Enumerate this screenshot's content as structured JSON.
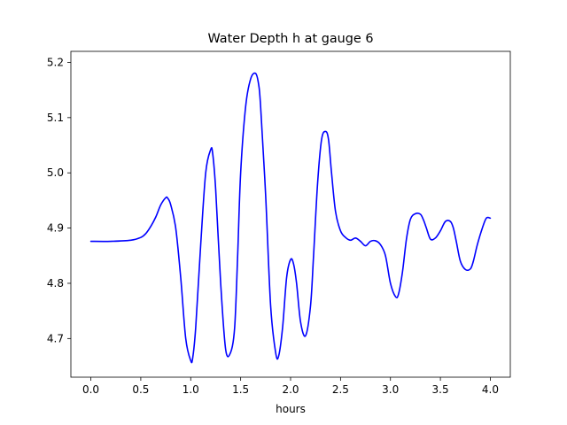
{
  "chart_data": {
    "type": "line",
    "title": "Water Depth h at gauge 6",
    "xlabel": "hours",
    "ylabel": "",
    "xlim": [
      -0.2,
      4.2
    ],
    "ylim": [
      4.63,
      5.22
    ],
    "xticks": [
      0.0,
      0.5,
      1.0,
      1.5,
      2.0,
      2.5,
      3.0,
      3.5,
      4.0
    ],
    "xtick_labels": [
      "0.0",
      "0.5",
      "1.0",
      "1.5",
      "2.0",
      "2.5",
      "3.0",
      "3.5",
      "4.0"
    ],
    "yticks": [
      4.7,
      4.8,
      4.9,
      5.0,
      5.1,
      5.2
    ],
    "ytick_labels": [
      "4.7",
      "4.8",
      "4.9",
      "5.0",
      "5.1",
      "5.2"
    ],
    "grid": false,
    "color": "#0000ff",
    "series": [
      {
        "x": [
          0.0,
          0.2,
          0.4,
          0.5,
          0.55,
          0.6,
          0.65,
          0.7,
          0.75,
          0.77,
          0.8,
          0.85,
          0.9,
          0.95,
          1.0,
          1.02,
          1.05,
          1.1,
          1.15,
          1.2,
          1.22,
          1.25,
          1.3,
          1.35,
          1.4,
          1.44,
          1.47,
          1.5,
          1.55,
          1.6,
          1.65,
          1.68,
          1.7,
          1.75,
          1.8,
          1.85,
          1.88,
          1.92,
          1.96,
          2.0,
          2.03,
          2.06,
          2.1,
          2.15,
          2.2,
          2.23,
          2.27,
          2.31,
          2.35,
          2.38,
          2.41,
          2.45,
          2.5,
          2.55,
          2.6,
          2.65,
          2.7,
          2.75,
          2.8,
          2.85,
          2.9,
          2.95,
          3.0,
          3.05,
          3.08,
          3.12,
          3.16,
          3.2,
          3.25,
          3.3,
          3.33,
          3.36,
          3.4,
          3.45,
          3.5,
          3.55,
          3.6,
          3.63,
          3.66,
          3.7,
          3.75,
          3.8,
          3.83,
          3.87,
          3.92,
          3.96,
          4.0
        ],
        "y": [
          4.876,
          4.876,
          4.878,
          4.883,
          4.89,
          4.903,
          4.92,
          4.942,
          4.955,
          4.954,
          4.942,
          4.9,
          4.81,
          4.7,
          4.66,
          4.665,
          4.72,
          4.87,
          5.0,
          5.042,
          5.035,
          4.97,
          4.8,
          4.68,
          4.675,
          4.72,
          4.85,
          5.0,
          5.12,
          5.17,
          5.18,
          5.16,
          5.12,
          4.96,
          4.76,
          4.675,
          4.668,
          4.72,
          4.81,
          4.843,
          4.835,
          4.8,
          4.73,
          4.705,
          4.76,
          4.85,
          4.98,
          5.06,
          5.075,
          5.06,
          5.0,
          4.93,
          4.895,
          4.883,
          4.878,
          4.882,
          4.876,
          4.868,
          4.876,
          4.877,
          4.87,
          4.85,
          4.8,
          4.776,
          4.78,
          4.82,
          4.88,
          4.916,
          4.926,
          4.925,
          4.915,
          4.9,
          4.88,
          4.882,
          4.895,
          4.912,
          4.912,
          4.9,
          4.875,
          4.84,
          4.825,
          4.826,
          4.84,
          4.87,
          4.9,
          4.918,
          4.918
        ]
      }
    ]
  }
}
